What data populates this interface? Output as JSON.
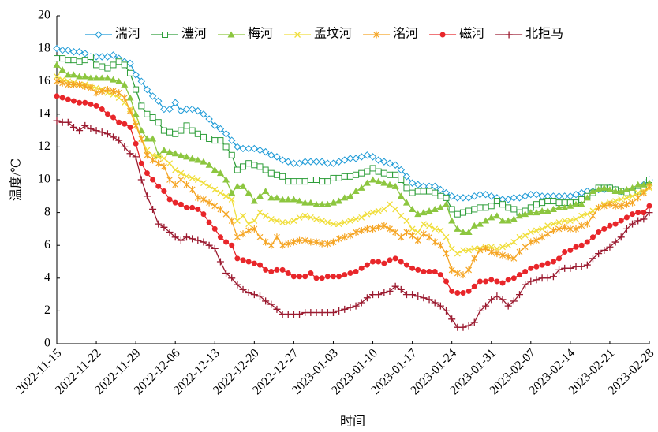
{
  "chart_data": {
    "type": "line",
    "x_label": "时间",
    "y_label": "温度/℃",
    "x": [
      "2022-11-15",
      "2022-11-16",
      "2022-11-17",
      "2022-11-18",
      "2022-11-19",
      "2022-11-20",
      "2022-11-21",
      "2022-11-22",
      "2022-11-23",
      "2022-11-24",
      "2022-11-25",
      "2022-11-26",
      "2022-11-27",
      "2022-11-28",
      "2022-11-29",
      "2022-11-30",
      "2022-12-01",
      "2022-12-02",
      "2022-12-03",
      "2022-12-04",
      "2022-12-05",
      "2022-12-06",
      "2022-12-07",
      "2022-12-08",
      "2022-12-09",
      "2022-12-10",
      "2022-12-11",
      "2022-12-12",
      "2022-12-13",
      "2022-12-14",
      "2022-12-15",
      "2022-12-16",
      "2022-12-17",
      "2022-12-18",
      "2022-12-19",
      "2022-12-20",
      "2022-12-21",
      "2022-12-22",
      "2022-12-23",
      "2022-12-24",
      "2022-12-25",
      "2022-12-26",
      "2022-12-27",
      "2022-12-28",
      "2022-12-29",
      "2022-12-30",
      "2022-12-31",
      "2023-01-01",
      "2023-01-02",
      "2023-01-03",
      "2023-01-04",
      "2023-01-05",
      "2023-01-06",
      "2023-01-07",
      "2023-01-08",
      "2023-01-09",
      "2023-01-10",
      "2023-01-11",
      "2023-01-12",
      "2023-01-13",
      "2023-01-14",
      "2023-01-15",
      "2023-01-16",
      "2023-01-17",
      "2023-01-18",
      "2023-01-19",
      "2023-01-20",
      "2023-01-21",
      "2023-01-22",
      "2023-01-23",
      "2023-01-24",
      "2023-01-25",
      "2023-01-26",
      "2023-01-27",
      "2023-01-28",
      "2023-01-29",
      "2023-01-30",
      "2023-01-31",
      "2023-02-01",
      "2023-02-02",
      "2023-02-03",
      "2023-02-04",
      "2023-02-05",
      "2023-02-06",
      "2023-02-07",
      "2023-02-08",
      "2023-02-09",
      "2023-02-10",
      "2023-02-11",
      "2023-02-12",
      "2023-02-13",
      "2023-02-14",
      "2023-02-15",
      "2023-02-16",
      "2023-02-17",
      "2023-02-18",
      "2023-02-19",
      "2023-02-20",
      "2023-02-21",
      "2023-02-22",
      "2023-02-23",
      "2023-02-24",
      "2023-02-25",
      "2023-02-26",
      "2023-02-27",
      "2023-02-28"
    ],
    "xlim": [
      "2022-11-15",
      "2023-02-28"
    ],
    "xticks": [
      "2022-11-15",
      "2022-11-22",
      "2022-11-29",
      "2022-12-06",
      "2022-12-13",
      "2022-12-20",
      "2022-12-27",
      "2023-01-03",
      "2023-01-10",
      "2023-01-17",
      "2023-01-24",
      "2023-01-31",
      "2023-02-07",
      "2023-02-14",
      "2023-02-21",
      "2023-02-28"
    ],
    "ylim": [
      0,
      20
    ],
    "yticks": [
      0,
      2,
      4,
      6,
      8,
      10,
      12,
      14,
      16,
      18,
      20
    ],
    "series": [
      {
        "name": "湍河",
        "color": "#1f9bd7",
        "marker": "diamond",
        "values": [
          18.0,
          17.9,
          17.9,
          17.8,
          17.8,
          17.7,
          17.5,
          17.5,
          17.5,
          17.5,
          17.6,
          17.4,
          17.2,
          17.1,
          16.4,
          16.0,
          15.5,
          15.1,
          14.8,
          14.3,
          14.3,
          14.7,
          14.2,
          14.3,
          14.3,
          14.2,
          14.0,
          13.7,
          13.3,
          13.1,
          12.8,
          12.4,
          12.0,
          11.9,
          11.9,
          11.9,
          11.8,
          11.7,
          11.5,
          11.4,
          11.2,
          11.1,
          11.0,
          11.0,
          11.1,
          11.1,
          11.1,
          11.1,
          11.0,
          11.0,
          11.1,
          11.2,
          11.3,
          11.3,
          11.4,
          11.5,
          11.4,
          11.2,
          11.1,
          11.0,
          10.9,
          10.6,
          10.2,
          9.8,
          9.7,
          9.6,
          9.6,
          9.6,
          9.4,
          9.2,
          9.0,
          8.9,
          8.9,
          8.9,
          9.0,
          9.1,
          9.1,
          9.0,
          8.9,
          8.8,
          8.8,
          8.9,
          8.9,
          9.0,
          9.1,
          9.1,
          9.0,
          9.0,
          9.0,
          9.0,
          9.0,
          9.0,
          9.1,
          9.2,
          9.3,
          9.3,
          9.4,
          9.4,
          9.5,
          9.4,
          9.3,
          9.3,
          9.4,
          9.5,
          9.7,
          10.0
        ]
      },
      {
        "name": "澧河",
        "color": "#2e9e3a",
        "marker": "square",
        "values": [
          17.4,
          17.4,
          17.3,
          17.3,
          17.2,
          17.3,
          17.5,
          17.0,
          16.9,
          16.8,
          17.0,
          17.2,
          17.0,
          16.5,
          15.5,
          14.5,
          14.0,
          13.8,
          13.5,
          13.0,
          12.9,
          12.8,
          13.0,
          13.3,
          13.0,
          12.8,
          12.6,
          12.5,
          12.4,
          12.4,
          12.0,
          11.5,
          10.6,
          10.8,
          11.0,
          10.9,
          10.8,
          10.6,
          10.4,
          10.3,
          10.2,
          9.9,
          9.9,
          9.9,
          9.9,
          10.0,
          10.0,
          9.9,
          9.9,
          10.1,
          10.1,
          10.2,
          10.2,
          10.3,
          10.4,
          10.5,
          10.7,
          10.5,
          10.4,
          10.3,
          10.3,
          10.0,
          9.5,
          9.2,
          9.3,
          9.3,
          9.3,
          9.2,
          9.0,
          8.9,
          8.2,
          7.9,
          8.0,
          8.1,
          8.2,
          8.3,
          8.3,
          8.4,
          8.7,
          8.5,
          8.3,
          8.2,
          8.0,
          8.1,
          8.3,
          8.5,
          8.6,
          8.7,
          8.7,
          8.6,
          8.6,
          8.6,
          8.6,
          8.8,
          9.0,
          9.2,
          9.5,
          9.5,
          9.5,
          9.4,
          9.3,
          9.2,
          9.2,
          9.3,
          9.5,
          10.0
        ]
      },
      {
        "name": "梅河",
        "color": "#8cc63f",
        "marker": "triangle",
        "values": [
          17.0,
          16.7,
          16.4,
          16.4,
          16.3,
          16.3,
          16.2,
          16.2,
          16.2,
          16.2,
          16.1,
          16.0,
          15.8,
          15.0,
          14.0,
          13.0,
          12.5,
          12.5,
          11.5,
          11.8,
          11.7,
          11.6,
          11.5,
          11.4,
          11.3,
          11.2,
          11.1,
          10.9,
          10.6,
          10.4,
          10.0,
          9.2,
          9.6,
          9.6,
          9.2,
          8.7,
          9.0,
          9.3,
          8.9,
          8.9,
          8.8,
          8.8,
          8.8,
          8.7,
          8.6,
          8.6,
          8.5,
          8.5,
          8.5,
          8.6,
          8.7,
          8.9,
          9.0,
          9.3,
          9.5,
          9.8,
          10.0,
          9.9,
          9.8,
          9.7,
          9.6,
          9.0,
          8.6,
          8.2,
          7.9,
          8.0,
          8.1,
          8.2,
          8.3,
          8.5,
          7.5,
          7.0,
          6.8,
          6.8,
          7.2,
          7.3,
          7.5,
          7.7,
          7.8,
          7.5,
          7.5,
          7.6,
          7.8,
          7.9,
          8.0,
          8.0,
          8.1,
          8.1,
          8.2,
          8.3,
          8.3,
          8.4,
          8.5,
          8.5,
          8.9,
          9.3,
          9.4,
          9.5,
          9.4,
          9.3,
          9.3,
          9.4,
          9.5,
          9.7,
          9.7,
          9.8
        ]
      },
      {
        "name": "孟坟河",
        "color": "#f0de3c",
        "marker": "x",
        "values": [
          16.3,
          16.1,
          16.0,
          15.9,
          15.8,
          15.8,
          15.7,
          15.6,
          15.5,
          15.3,
          15.2,
          15.0,
          14.7,
          14.3,
          13.5,
          12.5,
          11.8,
          11.5,
          11.4,
          11.3,
          11.0,
          10.6,
          10.4,
          10.2,
          10.1,
          10.0,
          9.8,
          9.6,
          9.4,
          9.2,
          9.0,
          8.8,
          7.5,
          7.8,
          7.3,
          7.5,
          8.0,
          7.8,
          7.6,
          7.5,
          7.4,
          7.4,
          7.5,
          7.7,
          7.8,
          7.7,
          7.6,
          7.5,
          7.4,
          7.3,
          7.3,
          7.4,
          7.5,
          7.6,
          7.7,
          7.9,
          8.0,
          8.1,
          8.2,
          8.5,
          8.2,
          7.8,
          7.5,
          7.0,
          6.8,
          7.3,
          7.2,
          7.0,
          6.9,
          6.5,
          5.8,
          5.5,
          5.7,
          5.7,
          5.8,
          5.8,
          5.9,
          5.9,
          5.8,
          5.9,
          6.0,
          6.2,
          6.5,
          6.6,
          6.8,
          6.9,
          7.0,
          7.2,
          7.3,
          7.4,
          7.5,
          7.5,
          7.6,
          7.8,
          7.9,
          8.1,
          8.3,
          8.5,
          8.6,
          8.7,
          8.8,
          8.9,
          9.0,
          9.2,
          9.3,
          9.5
        ]
      },
      {
        "name": "洺河",
        "color": "#f5a524",
        "marker": "asterisk",
        "values": [
          16.0,
          15.9,
          15.8,
          15.8,
          15.8,
          15.7,
          15.6,
          15.3,
          15.4,
          15.5,
          15.4,
          15.3,
          15.0,
          14.2,
          13.3,
          12.5,
          11.5,
          11.2,
          11.0,
          10.8,
          10.0,
          9.7,
          10.0,
          9.7,
          9.4,
          8.9,
          8.8,
          8.6,
          8.4,
          8.2,
          7.9,
          7.5,
          6.5,
          6.7,
          6.9,
          7.0,
          6.5,
          6.2,
          6.0,
          6.5,
          6.0,
          6.1,
          6.2,
          6.3,
          6.3,
          6.2,
          6.2,
          6.1,
          6.1,
          6.2,
          6.4,
          6.5,
          6.6,
          6.8,
          6.9,
          7.0,
          7.0,
          7.1,
          7.2,
          7.0,
          6.8,
          6.5,
          6.8,
          6.6,
          6.3,
          6.7,
          6.5,
          6.2,
          6.0,
          5.5,
          4.5,
          4.3,
          4.2,
          4.5,
          5.2,
          5.7,
          5.8,
          5.6,
          5.5,
          5.4,
          5.3,
          5.2,
          5.6,
          5.9,
          6.2,
          6.3,
          6.5,
          6.7,
          6.9,
          7.0,
          7.1,
          7.0,
          7.0,
          7.2,
          7.3,
          7.8,
          8.3,
          8.4,
          8.5,
          8.4,
          8.4,
          8.5,
          8.6,
          8.9,
          9.2,
          9.6
        ]
      },
      {
        "name": "磁河",
        "color": "#e8262a",
        "marker": "circle",
        "values": [
          15.1,
          15.0,
          14.9,
          14.8,
          14.7,
          14.7,
          14.6,
          14.5,
          14.3,
          14.0,
          13.8,
          13.5,
          13.4,
          13.2,
          12.2,
          11.0,
          10.4,
          10.0,
          9.6,
          9.3,
          8.8,
          8.6,
          8.5,
          8.3,
          8.3,
          8.2,
          7.9,
          7.4,
          7.0,
          6.5,
          6.2,
          6.0,
          5.2,
          5.1,
          5.0,
          4.9,
          4.8,
          4.5,
          4.4,
          4.5,
          4.5,
          4.3,
          4.1,
          4.1,
          4.1,
          4.3,
          4.0,
          4.0,
          4.1,
          4.1,
          4.1,
          4.2,
          4.3,
          4.4,
          4.6,
          4.8,
          5.0,
          5.0,
          4.9,
          5.1,
          5.2,
          5.0,
          4.8,
          4.6,
          4.5,
          4.4,
          4.4,
          4.4,
          4.2,
          3.8,
          3.2,
          3.1,
          3.1,
          3.2,
          3.5,
          3.8,
          3.8,
          3.9,
          3.8,
          3.7,
          3.9,
          4.0,
          4.2,
          4.4,
          4.6,
          4.7,
          4.8,
          4.9,
          5.0,
          5.2,
          5.6,
          5.7,
          5.9,
          6.0,
          6.2,
          6.5,
          6.8,
          7.0,
          7.2,
          7.3,
          7.5,
          7.7,
          7.9,
          8.0,
          8.0,
          8.4
        ]
      },
      {
        "name": "北拒马",
        "color": "#9b1b30",
        "marker": "plus",
        "values": [
          13.6,
          13.5,
          13.5,
          13.2,
          13.0,
          13.3,
          13.1,
          13.0,
          12.9,
          12.8,
          12.6,
          12.4,
          12.0,
          11.6,
          11.4,
          10.0,
          9.0,
          8.2,
          7.3,
          7.1,
          6.8,
          6.5,
          6.3,
          6.5,
          6.4,
          6.3,
          6.2,
          6.0,
          5.8,
          5.0,
          4.3,
          4.0,
          3.6,
          3.3,
          3.1,
          3.0,
          2.9,
          2.6,
          2.4,
          2.1,
          1.8,
          1.8,
          1.8,
          1.8,
          1.9,
          1.9,
          1.9,
          1.9,
          1.9,
          1.9,
          2.0,
          2.1,
          2.2,
          2.3,
          2.5,
          2.8,
          3.0,
          3.0,
          3.1,
          3.2,
          3.5,
          3.3,
          3.0,
          3.0,
          2.9,
          2.8,
          2.7,
          2.5,
          2.3,
          2.0,
          1.5,
          1.0,
          1.0,
          1.1,
          1.3,
          2.0,
          2.3,
          2.7,
          2.9,
          2.7,
          2.3,
          2.6,
          3.0,
          3.6,
          3.8,
          3.9,
          4.0,
          4.0,
          4.1,
          4.5,
          4.6,
          4.6,
          4.7,
          4.7,
          4.8,
          5.2,
          5.5,
          5.7,
          5.9,
          6.2,
          6.5,
          7.0,
          7.3,
          7.5,
          7.6,
          8.0
        ]
      }
    ]
  }
}
